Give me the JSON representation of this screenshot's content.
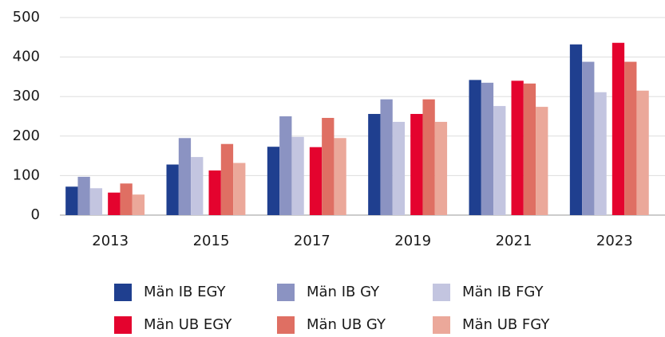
{
  "chart_data": {
    "type": "bar",
    "categories": [
      "2013",
      "2015",
      "2017",
      "2019",
      "2021",
      "2023"
    ],
    "series": [
      {
        "name": "Män IB EGY",
        "color": "#1f3f8f",
        "values": [
          72,
          128,
          173,
          256,
          342,
          432
        ]
      },
      {
        "name": "Män IB GY",
        "color": "#8b93c2",
        "values": [
          97,
          195,
          250,
          293,
          335,
          388
        ]
      },
      {
        "name": "Män IB FGY",
        "color": "#c3c5e0",
        "values": [
          68,
          147,
          198,
          236,
          276,
          311
        ]
      },
      {
        "name": "Män UB EGY",
        "color": "#e4032e",
        "values": [
          57,
          113,
          172,
          256,
          340,
          436
        ]
      },
      {
        "name": "Män UB GY",
        "color": "#df6f63",
        "values": [
          80,
          180,
          246,
          293,
          333,
          388
        ]
      },
      {
        "name": "Män UB FGY",
        "color": "#eba89a",
        "values": [
          52,
          132,
          195,
          236,
          274,
          315
        ]
      }
    ],
    "ylim": [
      0,
      500
    ],
    "yticks": [
      0,
      100,
      200,
      300,
      400,
      500
    ],
    "grid": true
  }
}
